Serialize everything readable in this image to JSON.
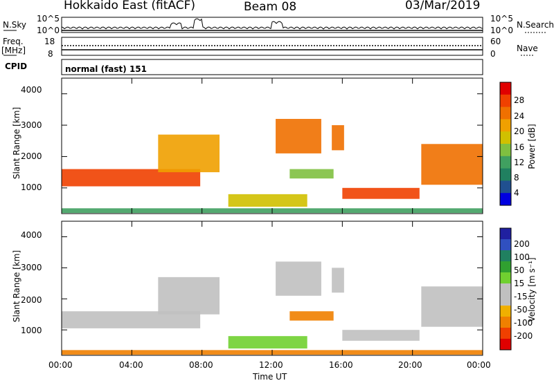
{
  "header": {
    "station": "Hokkaido East (fitACF)",
    "beam": "Beam 08",
    "date": "03/Mar/2019"
  },
  "strip": {
    "nsky_label": "N.Sky",
    "nsky_top": "10^5",
    "nsky_bottom": "10^0",
    "nsearch_label": "N.Search",
    "nsearch_top": "10^5",
    "nsearch_bottom": "10^0",
    "freq_label": "Freq.",
    "freq_unit": "[MHz]",
    "freq_top": "18",
    "freq_bottom": "8",
    "nave_label": "Nave",
    "nave_top": "60",
    "nave_bottom": "0",
    "cpid_label": "CPID",
    "cpid_value": "normal (fast) 151"
  },
  "power_scale": {
    "label": "Power [dB]",
    "ticks": [
      "28",
      "24",
      "20",
      "16",
      "12",
      "8",
      "4"
    ],
    "colors": [
      "#e00000",
      "#f04000",
      "#f07000",
      "#f0a000",
      "#d0c000",
      "#7fc040",
      "#40a060",
      "#208060",
      "#205090",
      "#0000e0"
    ]
  },
  "velocity_scale": {
    "label": "Velocity [m s⁻¹]",
    "ticks": [
      "200",
      "100",
      "50",
      "15",
      "-15",
      "-50",
      "-100",
      "-200"
    ],
    "colors": [
      "#2020a0",
      "#3050c0",
      "#208060",
      "#30a030",
      "#70d030",
      "#c0c0c0",
      "#c0c0c0",
      "#f0b000",
      "#f08000",
      "#f04000",
      "#e00000"
    ]
  },
  "axes": {
    "ylabel": "Slant Range [km]",
    "yticks": [
      "4000",
      "3000",
      "2000",
      "1000"
    ],
    "xticks": [
      "00:00",
      "04:00",
      "08:00",
      "12:00",
      "16:00",
      "20:00",
      "00:00"
    ],
    "xlabel": "Time UT"
  },
  "chart_data": [
    {
      "type": "heatmap",
      "name": "Power",
      "xlabel": "Time UT",
      "ylabel": "Slant Range [km]",
      "xlim": [
        0,
        24
      ],
      "ylim": [
        180,
        4500
      ],
      "colorbar": {
        "label": "Power [dB]",
        "range": [
          0,
          32
        ]
      },
      "regions": [
        {
          "t0": 0.0,
          "t1": 7.9,
          "r0": 1050,
          "r1": 1600,
          "level": 28
        },
        {
          "t0": 5.5,
          "t1": 9.0,
          "r0": 1500,
          "r1": 2700,
          "level": 20
        },
        {
          "t0": 12.2,
          "t1": 14.8,
          "r0": 2100,
          "r1": 3200,
          "level": 26
        },
        {
          "t0": 15.4,
          "t1": 16.1,
          "r0": 2200,
          "r1": 3000,
          "level": 24
        },
        {
          "t0": 16.0,
          "t1": 20.4,
          "r0": 650,
          "r1": 1000,
          "level": 28
        },
        {
          "t0": 13.0,
          "t1": 15.5,
          "r0": 1300,
          "r1": 1600,
          "level": 14
        },
        {
          "t0": 20.5,
          "t1": 24.0,
          "r0": 1100,
          "r1": 2400,
          "level": 26
        },
        {
          "t0": 9.5,
          "t1": 14.0,
          "r0": 400,
          "r1": 800,
          "level": 18
        },
        {
          "t0": 0.0,
          "t1": 24.0,
          "r0": 200,
          "r1": 350,
          "level": 12
        }
      ]
    },
    {
      "type": "heatmap",
      "name": "Velocity",
      "xlabel": "Time UT",
      "ylabel": "Slant Range [km]",
      "xlim": [
        0,
        24
      ],
      "ylim": [
        180,
        4500
      ],
      "colorbar": {
        "label": "Velocity [m s⁻¹]",
        "range": [
          -250,
          250
        ]
      },
      "regions": [
        {
          "t0": 0.0,
          "t1": 7.9,
          "r0": 1050,
          "r1": 1600,
          "level": 0
        },
        {
          "t0": 5.5,
          "t1": 9.0,
          "r0": 1500,
          "r1": 2700,
          "level": 0
        },
        {
          "t0": 12.2,
          "t1": 14.8,
          "r0": 2100,
          "r1": 3200,
          "level": 0
        },
        {
          "t0": 15.4,
          "t1": 16.1,
          "r0": 2200,
          "r1": 3000,
          "level": 0
        },
        {
          "t0": 16.0,
          "t1": 20.4,
          "r0": 650,
          "r1": 1000,
          "level": 0
        },
        {
          "t0": 13.0,
          "t1": 15.5,
          "r0": 1300,
          "r1": 1600,
          "level": -60
        },
        {
          "t0": 20.5,
          "t1": 24.0,
          "r0": 1100,
          "r1": 2400,
          "level": 0
        },
        {
          "t0": 9.5,
          "t1": 14.0,
          "r0": 400,
          "r1": 800,
          "level": 40
        },
        {
          "t0": 0.0,
          "t1": 24.0,
          "r0": 200,
          "r1": 350,
          "level": -60
        }
      ]
    }
  ]
}
